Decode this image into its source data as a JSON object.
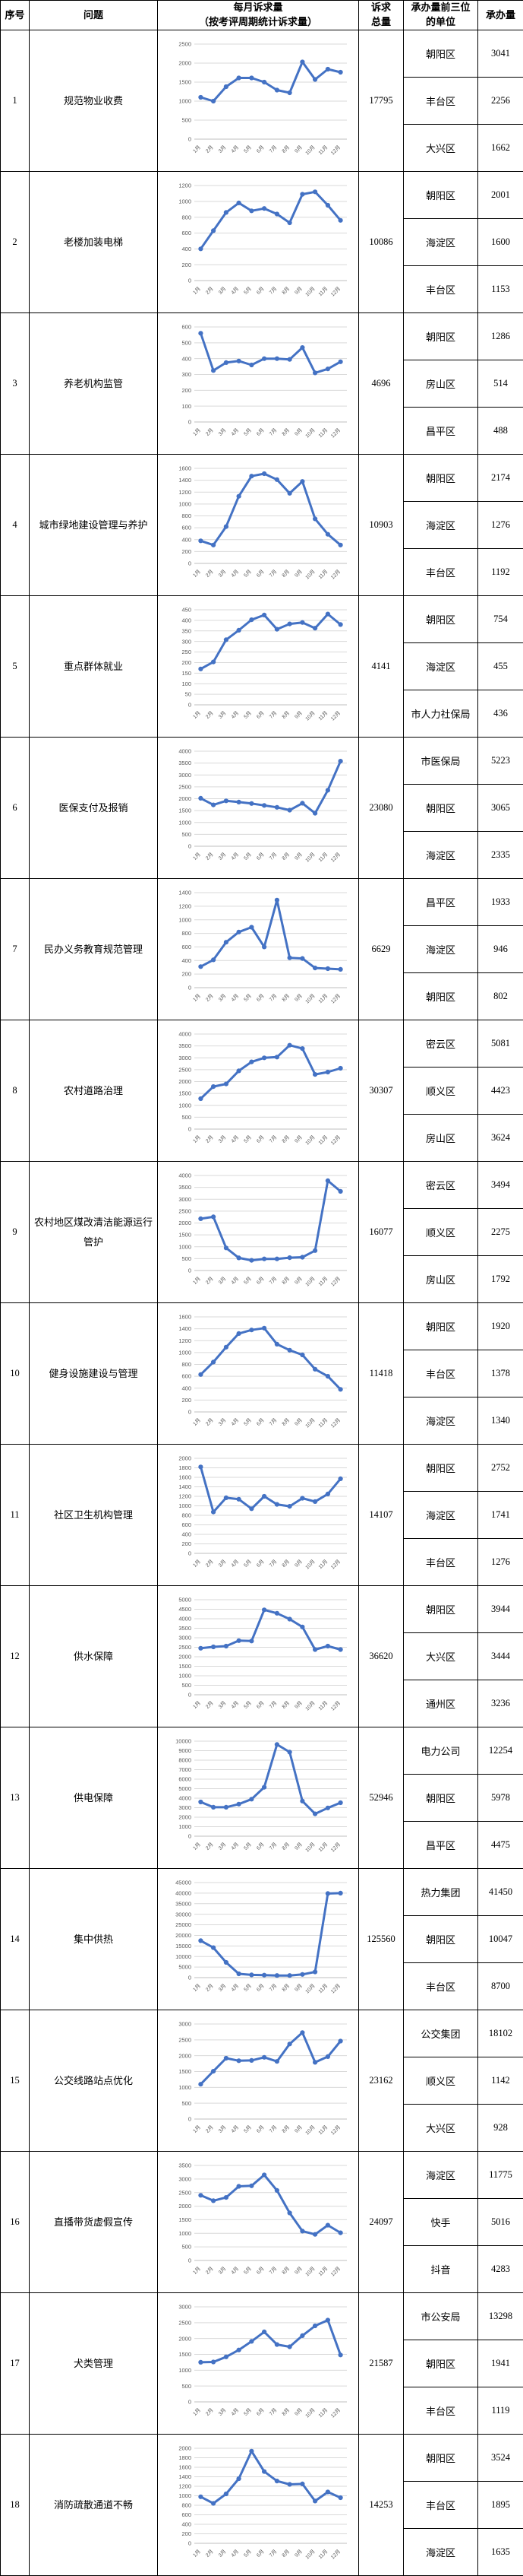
{
  "header": {
    "col_seq": "序号",
    "col_problem": "问题",
    "col_chart_line1": "每月诉求量",
    "col_chart_line2": "（按考评周期统计诉求量）",
    "col_total_line1": "诉求",
    "col_total_line2": "总量",
    "col_unit_line1": "承办量前三位",
    "col_unit_line2": "的单位",
    "col_volume": "承办量"
  },
  "chart_data": {
    "type": "line",
    "categories": [
      "1月",
      "2月",
      "3月",
      "4月",
      "5月",
      "6月",
      "7月",
      "8月",
      "9月",
      "10月",
      "11月",
      "12月"
    ],
    "line_color": "#4472C4",
    "grid_color": "#d9d9d9",
    "tick_color": "#595959",
    "legend": "none",
    "series": [
      {
        "name": "规范物业收费",
        "values": [
          1100,
          1000,
          1380,
          1610,
          1610,
          1500,
          1290,
          1220,
          2030,
          1570,
          1840,
          1760
        ],
        "ylim": [
          0,
          2500
        ],
        "ystep": 500
      },
      {
        "name": "老楼加装电梯",
        "values": [
          400,
          630,
          860,
          980,
          880,
          910,
          840,
          730,
          1090,
          1120,
          950,
          760
        ],
        "ylim": [
          0,
          1200
        ],
        "ystep": 200
      },
      {
        "name": "养老机构监管",
        "values": [
          560,
          325,
          375,
          385,
          360,
          400,
          400,
          395,
          470,
          310,
          335,
          380
        ],
        "ylim": [
          0,
          600
        ],
        "ystep": 100
      },
      {
        "name": "城市绿地建设管理与养护",
        "values": [
          380,
          310,
          620,
          1130,
          1470,
          1510,
          1410,
          1180,
          1380,
          750,
          490,
          310
        ],
        "ylim": [
          0,
          1600
        ],
        "ystep": 200
      },
      {
        "name": "重点群体就业",
        "values": [
          170,
          203,
          308,
          353,
          403,
          425,
          358,
          383,
          390,
          363,
          430,
          380
        ],
        "ylim": [
          0,
          450
        ],
        "ystep": 50
      },
      {
        "name": "医保支付及报销",
        "values": [
          2020,
          1740,
          1910,
          1860,
          1800,
          1720,
          1640,
          1520,
          1810,
          1390,
          2360,
          3580
        ],
        "ylim": [
          0,
          4000
        ],
        "ystep": 500
      },
      {
        "name": "民办义务教育规范管理",
        "values": [
          310,
          410,
          670,
          820,
          890,
          600,
          1290,
          440,
          430,
          290,
          280,
          270
        ],
        "ylim": [
          0,
          1400
        ],
        "ystep": 200
      },
      {
        "name": "农村道路治理",
        "values": [
          1280,
          1790,
          1900,
          2450,
          2830,
          3000,
          3030,
          3530,
          3390,
          2300,
          2400,
          2560
        ],
        "ylim": [
          0,
          4000
        ],
        "ystep": 500
      },
      {
        "name": "农村地区煤改清洁能源运行管护",
        "values": [
          2180,
          2260,
          950,
          530,
          430,
          490,
          490,
          540,
          560,
          840,
          3780,
          3330
        ],
        "ylim": [
          0,
          4000
        ],
        "ystep": 500
      },
      {
        "name": "健身设施建设与管理",
        "values": [
          630,
          840,
          1090,
          1320,
          1380,
          1410,
          1140,
          1040,
          960,
          720,
          600,
          380
        ],
        "ylim": [
          0,
          1600
        ],
        "ystep": 200
      },
      {
        "name": "社区卫生机构管理",
        "values": [
          1820,
          870,
          1170,
          1140,
          940,
          1200,
          1030,
          990,
          1160,
          1090,
          1250,
          1570
        ],
        "ylim": [
          0,
          2000
        ],
        "ystep": 200
      },
      {
        "name": "供水保障",
        "values": [
          2450,
          2520,
          2560,
          2850,
          2830,
          4470,
          4290,
          3980,
          3570,
          2380,
          2560,
          2380
        ],
        "ylim": [
          0,
          5000
        ],
        "ystep": 500
      },
      {
        "name": "供电保障",
        "values": [
          3600,
          3050,
          3050,
          3380,
          3900,
          5150,
          9650,
          8850,
          3700,
          2350,
          2980,
          3520
        ],
        "ylim": [
          0,
          10000
        ],
        "ystep": 1000
      },
      {
        "name": "集中供热",
        "values": [
          17500,
          14200,
          7200,
          1800,
          1300,
          1200,
          1000,
          1000,
          1500,
          2700,
          39800,
          40000
        ],
        "ylim": [
          0,
          45000
        ],
        "ystep": 5000
      },
      {
        "name": "公交线路站点优化",
        "values": [
          1100,
          1510,
          1920,
          1840,
          1850,
          1950,
          1820,
          2370,
          2730,
          1790,
          1970,
          2460
        ],
        "ylim": [
          0,
          3000
        ],
        "ystep": 500
      },
      {
        "name": "直播带货虚假宣传",
        "values": [
          2400,
          2200,
          2320,
          2730,
          2750,
          3150,
          2580,
          1750,
          1080,
          960,
          1300,
          1020
        ],
        "ylim": [
          0,
          3500
        ],
        "ystep": 500
      },
      {
        "name": "犬类管理",
        "values": [
          1250,
          1260,
          1420,
          1640,
          1910,
          2210,
          1810,
          1740,
          2090,
          2400,
          2580,
          1480
        ],
        "ylim": [
          0,
          3000
        ],
        "ystep": 500
      },
      {
        "name": "消防疏散通道不畅",
        "values": [
          980,
          840,
          1040,
          1360,
          1940,
          1510,
          1310,
          1240,
          1250,
          890,
          1080,
          960
        ],
        "ylim": [
          0,
          2000
        ],
        "ystep": 200
      }
    ]
  },
  "rows": [
    {
      "seq": "1",
      "problem": "规范物业收费",
      "total": "17795",
      "units": [
        {
          "name": "朝阳区",
          "volume": "3041"
        },
        {
          "name": "丰台区",
          "volume": "2256"
        },
        {
          "name": "大兴区",
          "volume": "1662"
        }
      ]
    },
    {
      "seq": "2",
      "problem": "老楼加装电梯",
      "total": "10086",
      "units": [
        {
          "name": "朝阳区",
          "volume": "2001"
        },
        {
          "name": "海淀区",
          "volume": "1600"
        },
        {
          "name": "丰台区",
          "volume": "1153"
        }
      ]
    },
    {
      "seq": "3",
      "problem": "养老机构监管",
      "total": "4696",
      "units": [
        {
          "name": "朝阳区",
          "volume": "1286"
        },
        {
          "name": "房山区",
          "volume": "514"
        },
        {
          "name": "昌平区",
          "volume": "488"
        }
      ]
    },
    {
      "seq": "4",
      "problem": "城市绿地建设管理与养护",
      "total": "10903",
      "units": [
        {
          "name": "朝阳区",
          "volume": "2174"
        },
        {
          "name": "海淀区",
          "volume": "1276"
        },
        {
          "name": "丰台区",
          "volume": "1192"
        }
      ]
    },
    {
      "seq": "5",
      "problem": "重点群体就业",
      "total": "4141",
      "units": [
        {
          "name": "朝阳区",
          "volume": "754"
        },
        {
          "name": "海淀区",
          "volume": "455"
        },
        {
          "name": "市人力社保局",
          "volume": "436"
        }
      ]
    },
    {
      "seq": "6",
      "problem": "医保支付及报销",
      "total": "23080",
      "units": [
        {
          "name": "市医保局",
          "volume": "5223"
        },
        {
          "name": "朝阳区",
          "volume": "3065"
        },
        {
          "name": "海淀区",
          "volume": "2335"
        }
      ]
    },
    {
      "seq": "7",
      "problem": "民办义务教育规范管理",
      "total": "6629",
      "units": [
        {
          "name": "昌平区",
          "volume": "1933"
        },
        {
          "name": "海淀区",
          "volume": "946"
        },
        {
          "name": "朝阳区",
          "volume": "802"
        }
      ]
    },
    {
      "seq": "8",
      "problem": "农村道路治理",
      "total": "30307",
      "units": [
        {
          "name": "密云区",
          "volume": "5081"
        },
        {
          "name": "顺义区",
          "volume": "4423"
        },
        {
          "name": "房山区",
          "volume": "3624"
        }
      ]
    },
    {
      "seq": "9",
      "problem": "农村地区煤改清洁能源运行管护",
      "total": "16077",
      "units": [
        {
          "name": "密云区",
          "volume": "3494"
        },
        {
          "name": "顺义区",
          "volume": "2275"
        },
        {
          "name": "房山区",
          "volume": "1792"
        }
      ]
    },
    {
      "seq": "10",
      "problem": "健身设施建设与管理",
      "total": "11418",
      "units": [
        {
          "name": "朝阳区",
          "volume": "1920"
        },
        {
          "name": "丰台区",
          "volume": "1378"
        },
        {
          "name": "海淀区",
          "volume": "1340"
        }
      ]
    },
    {
      "seq": "11",
      "problem": "社区卫生机构管理",
      "total": "14107",
      "units": [
        {
          "name": "朝阳区",
          "volume": "2752"
        },
        {
          "name": "海淀区",
          "volume": "1741"
        },
        {
          "name": "丰台区",
          "volume": "1276"
        }
      ]
    },
    {
      "seq": "12",
      "problem": "供水保障",
      "total": "36620",
      "units": [
        {
          "name": "朝阳区",
          "volume": "3944"
        },
        {
          "name": "大兴区",
          "volume": "3444"
        },
        {
          "name": "通州区",
          "volume": "3236"
        }
      ]
    },
    {
      "seq": "13",
      "problem": "供电保障",
      "total": "52946",
      "units": [
        {
          "name": "电力公司",
          "volume": "12254"
        },
        {
          "name": "朝阳区",
          "volume": "5978"
        },
        {
          "name": "昌平区",
          "volume": "4475"
        }
      ]
    },
    {
      "seq": "14",
      "problem": "集中供热",
      "total": "125560",
      "units": [
        {
          "name": "热力集团",
          "volume": "41450"
        },
        {
          "name": "朝阳区",
          "volume": "10047"
        },
        {
          "name": "丰台区",
          "volume": "8700"
        }
      ]
    },
    {
      "seq": "15",
      "problem": "公交线路站点优化",
      "total": "23162",
      "units": [
        {
          "name": "公交集团",
          "volume": "18102"
        },
        {
          "name": "顺义区",
          "volume": "1142"
        },
        {
          "name": "大兴区",
          "volume": "928"
        }
      ]
    },
    {
      "seq": "16",
      "problem": "直播带货虚假宣传",
      "total": "24097",
      "units": [
        {
          "name": "海淀区",
          "volume": "11775"
        },
        {
          "name": "快手",
          "volume": "5016"
        },
        {
          "name": "抖音",
          "volume": "4283"
        }
      ]
    },
    {
      "seq": "17",
      "problem": "犬类管理",
      "total": "21587",
      "units": [
        {
          "name": "市公安局",
          "volume": "13298"
        },
        {
          "name": "朝阳区",
          "volume": "1941"
        },
        {
          "name": "丰台区",
          "volume": "1119"
        }
      ]
    },
    {
      "seq": "18",
      "problem": "消防疏散通道不畅",
      "total": "14253",
      "units": [
        {
          "name": "朝阳区",
          "volume": "3524"
        },
        {
          "name": "丰台区",
          "volume": "1895"
        },
        {
          "name": "海淀区",
          "volume": "1635"
        }
      ]
    }
  ]
}
